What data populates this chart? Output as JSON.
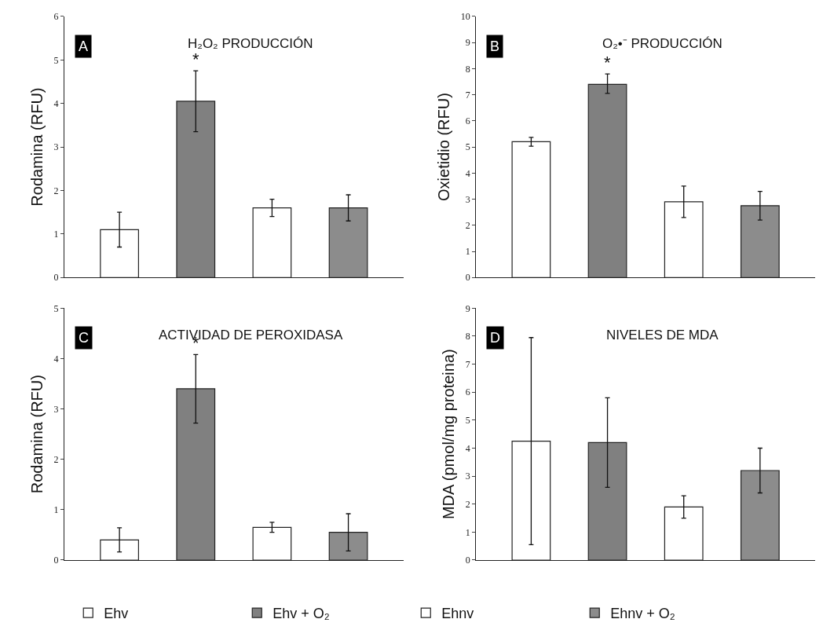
{
  "chart_data": [
    {
      "type": "bar",
      "title": "H₂O₂ PRODUCCIÓN",
      "ylabel": "Rodamina (RFU)",
      "categories": [
        null
      ],
      "ylim": [
        0,
        6
      ],
      "yticks": [
        0,
        1,
        2,
        3,
        4,
        5,
        6
      ],
      "legend": "bottom",
      "annotations": [
        "A",
        "*"
      ],
      "series": [
        {
          "name": "Ehv",
          "color": "#ffffff",
          "values": [
            1.1
          ],
          "errors": [
            0.4
          ]
        },
        {
          "name": "Ehv + O₂",
          "color": "#808080",
          "values": [
            4.05
          ],
          "errors": [
            0.7
          ]
        },
        {
          "name": "Ehnv",
          "color": "#ffffff",
          "values": [
            1.6
          ],
          "errors": [
            0.2
          ]
        },
        {
          "name": "Ehnv + O₂",
          "color": "#8c8c8c",
          "values": [
            1.6
          ],
          "errors": [
            0.3
          ]
        }
      ]
    },
    {
      "type": "bar",
      "title": "O₂•⁻ PRODUCCIÓN",
      "ylabel": "Oxietidio (RFU)",
      "categories": [
        null
      ],
      "ylim": [
        0,
        10
      ],
      "yticks": [
        0,
        1,
        2,
        3,
        4,
        5,
        6,
        7,
        8,
        9,
        10
      ],
      "annotations": [
        "B",
        "*"
      ],
      "series": [
        {
          "color": "#ffffff",
          "values": [
            5.2
          ],
          "errors": [
            0.17
          ]
        },
        {
          "color": "#808080",
          "values": [
            7.4
          ],
          "errors": [
            [
              7.05,
              7.8
            ]
          ]
        },
        {
          "color": "#ffffff",
          "values": [
            2.9
          ],
          "errors": [
            0.6
          ]
        },
        {
          "color": "#8c8c8c",
          "values": [
            2.75
          ],
          "errors": [
            0.55
          ]
        }
      ]
    },
    {
      "type": "bar",
      "title": "ACTIVIDAD DE PEROXIDASA",
      "ylabel": "Rodamina (RFU)",
      "categories": [
        null
      ],
      "ylim": [
        0,
        5
      ],
      "yticks": [
        0,
        1,
        2,
        3,
        4,
        5
      ],
      "annotations": [
        "C",
        "*"
      ],
      "series": [
        {
          "color": "#ffffff",
          "values": [
            0.4
          ],
          "errors": [
            0.24
          ]
        },
        {
          "color": "#808080",
          "values": [
            3.4
          ],
          "errors": [
            0.68
          ]
        },
        {
          "color": "#ffffff",
          "values": [
            0.65
          ],
          "errors": [
            0.1
          ]
        },
        {
          "color": "#8c8c8c",
          "values": [
            0.55
          ],
          "errors": [
            0.37
          ]
        }
      ]
    },
    {
      "type": "bar",
      "title": "NIVELES DE MDA",
      "ylabel": "MDA (pmol/mg proteina)",
      "categories": [
        null
      ],
      "ylim": [
        0,
        9
      ],
      "yticks": [
        0,
        1,
        2,
        3,
        4,
        5,
        6,
        7,
        8,
        9
      ],
      "annotations": [
        "D"
      ],
      "series": [
        {
          "color": "#ffffff",
          "values": [
            4.25
          ],
          "errors": [
            3.7
          ]
        },
        {
          "color": "#808080",
          "values": [
            4.2
          ],
          "errors": [
            1.6
          ]
        },
        {
          "color": "#ffffff",
          "values": [
            1.9
          ],
          "errors": [
            0.4
          ]
        },
        {
          "color": "#8c8c8c",
          "values": [
            3.2
          ],
          "errors": [
            0.8
          ]
        }
      ]
    }
  ]
}
